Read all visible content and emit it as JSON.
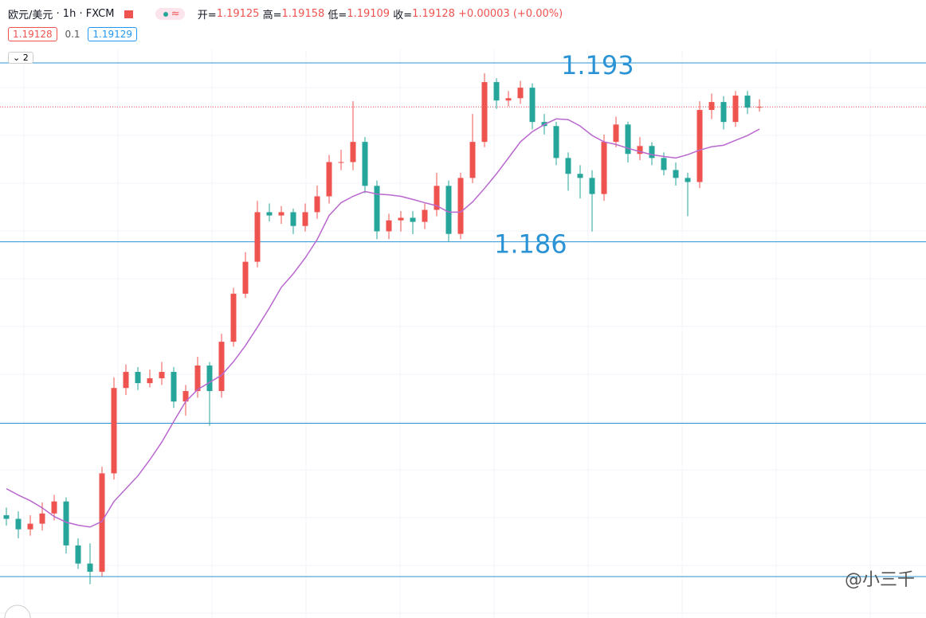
{
  "header": {
    "symbol": "欧元/美元",
    "interval": "1h",
    "source": "FXCM",
    "open_label": "开=",
    "high_label": "高=",
    "low_label": "低=",
    "close_label": "收=",
    "change": "+0.00003",
    "change_pct": "(+0.00%)",
    "spread": 0.1,
    "ask": 1.19129,
    "indicator_count": 2
  },
  "watermark": "@小三千",
  "chart_data": {
    "type": "candlestick",
    "open": [
      1.1753,
      1.17516,
      1.17475,
      1.17497,
      1.17537,
      1.17584,
      1.17412,
      1.17341,
      1.17309,
      1.17694,
      1.18028,
      1.18091,
      1.18047,
      1.18066,
      1.18091,
      1.17975,
      1.18016,
      1.18116,
      1.18016,
      1.18209,
      1.18397,
      1.18522,
      1.18716,
      1.18703,
      1.18716,
      1.18662,
      1.18716,
      1.18778,
      1.18912,
      1.18912,
      1.18991,
      1.18819,
      1.18641,
      1.18684,
      1.18694,
      1.18678,
      1.18725,
      1.18819,
      1.18631,
      1.1885,
      1.18991,
      1.19225,
      1.19153,
      1.19162,
      1.19203,
      1.19069,
      1.19053,
      1.18928,
      1.18866,
      1.1885,
      1.18787,
      1.18991,
      1.19059,
      1.18944,
      1.18975,
      1.18928,
      1.18881,
      1.1885,
      1.18834,
      1.19116,
      1.19147,
      1.19069,
      1.19172,
      1.19125
    ],
    "high": [
      1.1756,
      1.17545,
      1.1753,
      1.1758,
      1.1761,
      1.176,
      1.1744,
      1.1742,
      1.1772,
      1.1807,
      1.1812,
      1.1811,
      1.181,
      1.1813,
      1.1811,
      1.1804,
      1.1815,
      1.1813,
      1.1824,
      1.1842,
      1.1856,
      1.1876,
      1.1875,
      1.1874,
      1.1873,
      1.1875,
      1.1882,
      1.1894,
      1.1896,
      1.1915,
      1.1901,
      1.1884,
      1.1871,
      1.1872,
      1.1872,
      1.1875,
      1.1887,
      1.1884,
      1.1887,
      1.191,
      1.1926,
      1.1924,
      1.1919,
      1.1923,
      1.1922,
      1.191,
      1.1907,
      1.1895,
      1.189,
      1.1888,
      1.1902,
      1.1909,
      1.1907,
      1.1901,
      1.1899,
      1.1895,
      1.1891,
      1.1887,
      1.1915,
      1.1918,
      1.1917,
      1.1919,
      1.1919,
      1.19158
    ],
    "low": [
      1.1749,
      1.1744,
      1.1745,
      1.1747,
      1.1751,
      1.1738,
      1.1732,
      1.1726,
      1.1729,
      1.1767,
      1.18,
      1.1802,
      1.1803,
      1.1804,
      1.1795,
      1.1792,
      1.1799,
      1.1788,
      1.1799,
      1.1819,
      1.1838,
      1.185,
      1.1868,
      1.1867,
      1.1863,
      1.1864,
      1.1869,
      1.1875,
      1.1888,
      1.1888,
      1.1879,
      1.1861,
      1.1861,
      1.1864,
      1.1863,
      1.1865,
      1.187,
      1.186,
      1.1861,
      1.1883,
      1.1897,
      1.1912,
      1.1913,
      1.1914,
      1.1904,
      1.1902,
      1.189,
      1.188,
      1.1877,
      1.1864,
      1.1876,
      1.1897,
      1.1891,
      1.1892,
      1.189,
      1.1886,
      1.1882,
      1.187,
      1.1881,
      1.1908,
      1.1904,
      1.1905,
      1.191,
      1.19109
    ],
    "close": [
      1.17516,
      1.17475,
      1.17497,
      1.17537,
      1.17584,
      1.17412,
      1.17341,
      1.17309,
      1.17694,
      1.18028,
      1.18091,
      1.18047,
      1.18066,
      1.18091,
      1.17975,
      1.18016,
      1.18116,
      1.18016,
      1.18209,
      1.18397,
      1.18522,
      1.18716,
      1.18703,
      1.18716,
      1.18662,
      1.18716,
      1.18778,
      1.18912,
      1.18912,
      1.18991,
      1.18819,
      1.18641,
      1.18684,
      1.18694,
      1.18678,
      1.18725,
      1.18819,
      1.18631,
      1.1885,
      1.18991,
      1.19225,
      1.19153,
      1.19162,
      1.19203,
      1.19069,
      1.19053,
      1.18928,
      1.18866,
      1.1885,
      1.18787,
      1.18991,
      1.19059,
      1.18944,
      1.18975,
      1.18928,
      1.18881,
      1.1885,
      1.18834,
      1.19116,
      1.19147,
      1.19069,
      1.19172,
      1.19125,
      1.19128
    ],
    "up_color": "#ef5350",
    "down_color": "#26a69a",
    "ma": {
      "color": "#b967cf",
      "values": [
        1.17634,
        1.17609,
        1.17587,
        1.17559,
        1.17525,
        1.17503,
        1.17491,
        1.17484,
        1.17506,
        1.17584,
        1.17634,
        1.17684,
        1.17747,
        1.17816,
        1.17897,
        1.17975,
        1.18022,
        1.1805,
        1.18078,
        1.18131,
        1.18194,
        1.18266,
        1.18341,
        1.18422,
        1.18475,
        1.18537,
        1.18609,
        1.18703,
        1.18753,
        1.18778,
        1.18797,
        1.18787,
        1.18784,
        1.18778,
        1.18766,
        1.18753,
        1.18741,
        1.18716,
        1.18716,
        1.18756,
        1.18809,
        1.18866,
        1.18928,
        1.18991,
        1.19031,
        1.19059,
        1.19081,
        1.19078,
        1.19053,
        1.19016,
        1.18991,
        1.18981,
        1.18966,
        1.18953,
        1.18941,
        1.18934,
        1.18928,
        1.18941,
        1.18959,
        1.18972,
        1.18978,
        1.18997,
        1.19016,
        1.19041
      ]
    },
    "hlines": [
      1.193,
      1.186,
      1.1789,
      1.1729
    ],
    "hline_color": "#2a93d5",
    "ylim": [
      1.17128,
      1.19353
    ]
  }
}
